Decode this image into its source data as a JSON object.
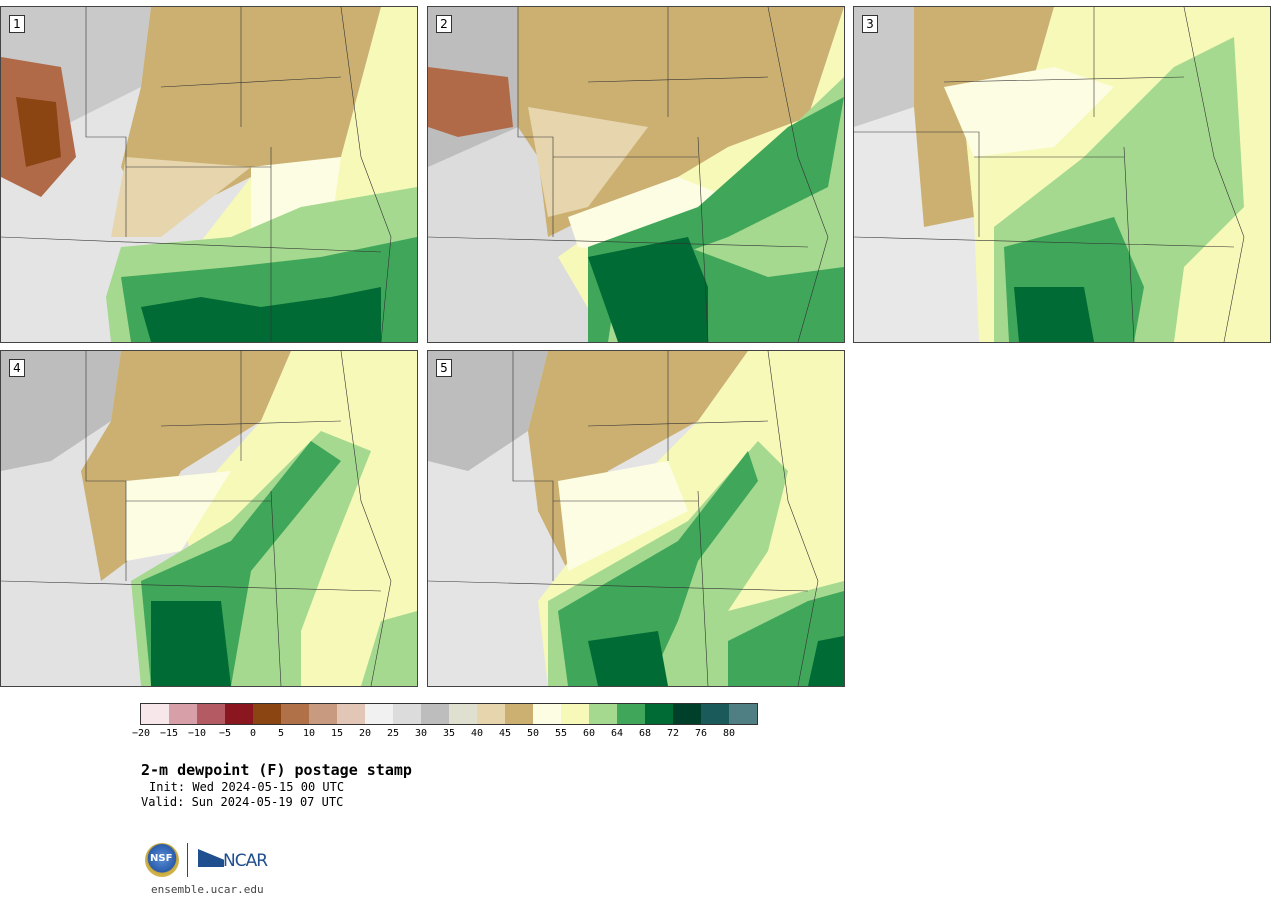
{
  "panels": [
    {
      "label": "1"
    },
    {
      "label": "2"
    },
    {
      "label": "3"
    },
    {
      "label": "4"
    },
    {
      "label": "5"
    }
  ],
  "colorbar": {
    "colors": [
      "#f7e6ea",
      "#d7a0a8",
      "#b35a63",
      "#8a1620",
      "#8b4513",
      "#b07048",
      "#c89a80",
      "#e2c6b6",
      "#f1f1f1",
      "#dcdcdc",
      "#bdbdbd",
      "#e0e0d0",
      "#e6d5ad",
      "#cbb072",
      "#fdfde3",
      "#f7f9b8",
      "#a4d98f",
      "#3fa65a",
      "#006b35",
      "#00402a",
      "#1a5a5a",
      "#4f7f83"
    ],
    "ticks": [
      "−20",
      "−15",
      "−10",
      "−5",
      "0",
      "5",
      "10",
      "15",
      "20",
      "25",
      "30",
      "35",
      "40",
      "45",
      "50",
      "55",
      "60",
      "64",
      "68",
      "72",
      "76",
      "80"
    ]
  },
  "title": "2-m dewpoint (F) postage stamp",
  "init": "Init: Wed 2024-05-15 00 UTC",
  "valid": "Valid: Sun 2024-05-19 07 UTC",
  "logos": {
    "nsf": "NSF",
    "ncar": "NCAR"
  },
  "url": "ensemble.ucar.edu"
}
